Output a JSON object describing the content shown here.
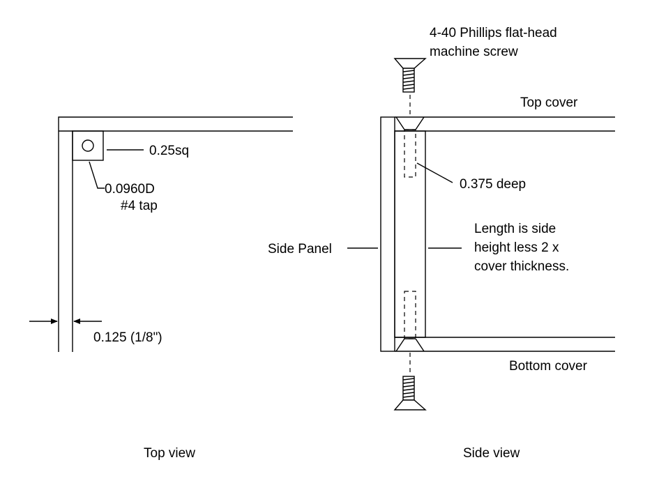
{
  "top_view": {
    "caption": "Top view",
    "square_label": "0.25sq",
    "hole_label_line1": "0.0960D",
    "hole_label_line2": "#4 tap",
    "thickness_label": "0.125 (1/8\")"
  },
  "side_view": {
    "caption": "Side view",
    "screw_label_line1": "4-40 Phillips flat-head",
    "screw_label_line2": "machine screw",
    "top_cover_label": "Top cover",
    "bottom_cover_label": "Bottom cover",
    "depth_label": "0.375 deep",
    "side_panel_label": "Side Panel",
    "length_note_line1": "Length is side",
    "length_note_line2": "height less 2 x",
    "length_note_line3": "cover thickness."
  }
}
